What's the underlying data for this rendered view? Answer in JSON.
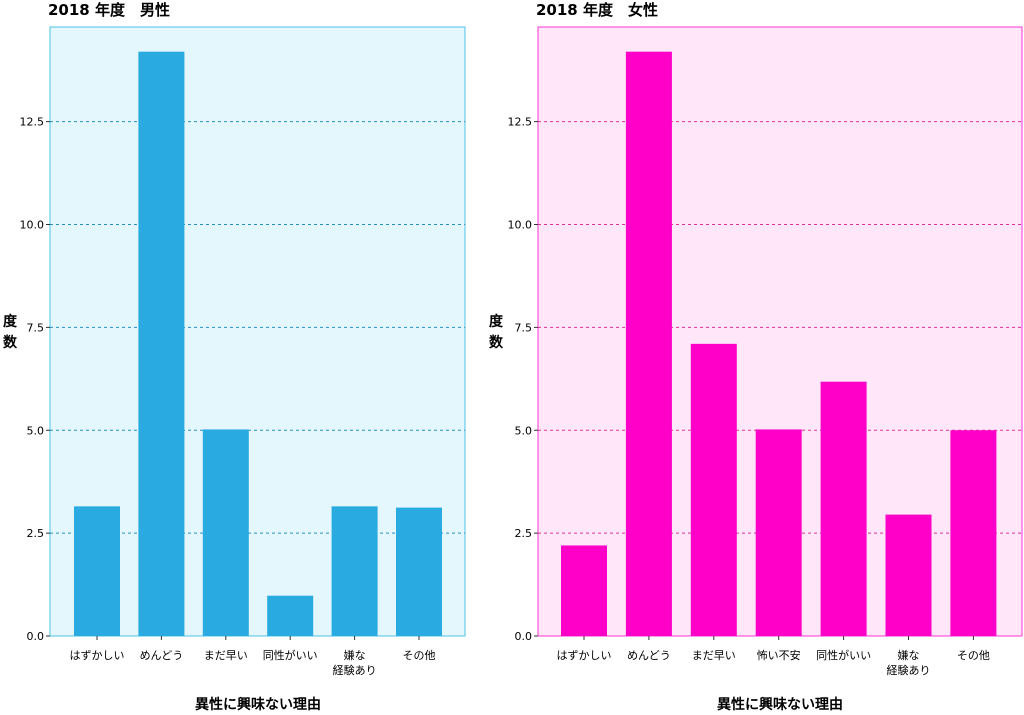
{
  "chart_data": [
    {
      "type": "bar",
      "title": "2018 年度　男性",
      "xlabel": "異性に興味ない理由",
      "ylabel": [
        "度",
        "数"
      ],
      "categories": [
        [
          "はずかしい"
        ],
        [
          "めんどう"
        ],
        [
          "まだ早い"
        ],
        [
          "同性がいい"
        ],
        [
          "嫌な",
          "経験あり"
        ],
        [
          "その他"
        ]
      ],
      "values": [
        3.15,
        14.2,
        5.02,
        0.98,
        3.15,
        3.12
      ],
      "ylim": [
        0,
        14.8
      ],
      "yticks": [
        0,
        2.5,
        5,
        7.5,
        10,
        12.5
      ],
      "ytick_labels": [
        "0.0",
        "2.5",
        "5.0",
        "7.5",
        "10.0",
        "12.5"
      ],
      "grid": true,
      "colors": {
        "bar": "#29abe2",
        "background": "#e3f7fc",
        "border": "#4dc3e6",
        "grid": "#2a90c0"
      }
    },
    {
      "type": "bar",
      "title": "2018 年度　女性",
      "xlabel": "異性に興味ない理由",
      "ylabel": [
        "度",
        "数"
      ],
      "categories": [
        [
          "はずかしい"
        ],
        [
          "めんどう"
        ],
        [
          "まだ早い"
        ],
        [
          "怖い不安"
        ],
        [
          "同性がいい"
        ],
        [
          "嫌な",
          "経験あり"
        ],
        [
          "その他"
        ]
      ],
      "values": [
        2.2,
        14.2,
        7.1,
        5.02,
        6.18,
        2.95,
        5.0
      ],
      "ylim": [
        0,
        14.8
      ],
      "yticks": [
        0,
        2.5,
        5,
        7.5,
        10,
        12.5
      ],
      "ytick_labels": [
        "0.0",
        "2.5",
        "5.0",
        "7.5",
        "10.0",
        "12.5"
      ],
      "grid": true,
      "colors": {
        "bar": "#ff00c8",
        "background": "#ffe6f9",
        "border": "#ff33d4",
        "grid": "#e0309a"
      }
    }
  ]
}
